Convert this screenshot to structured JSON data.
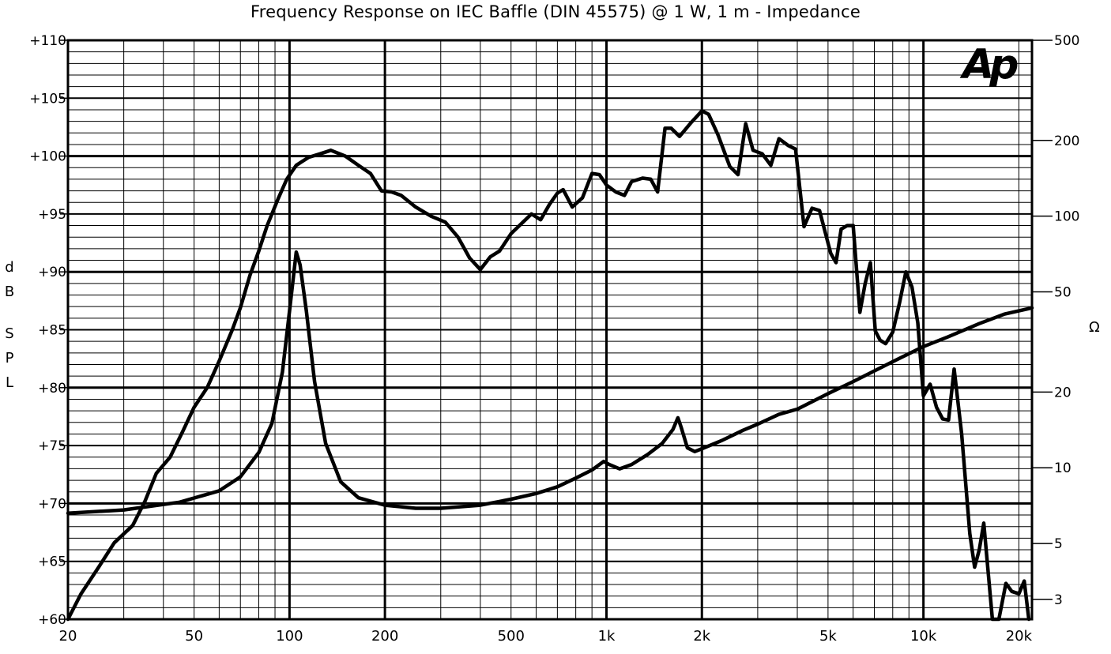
{
  "chart_data": {
    "type": "line",
    "title": "Frequency Response on IEC Baffle (DIN 45575) @ 1 W, 1 m - Impedance",
    "ylabel_left": "dB SPL",
    "ylabel_right": "Ω",
    "logo": "Ap",
    "x_scale": "log",
    "xlim": [
      20,
      22000
    ],
    "ylim_left": [
      60,
      110
    ],
    "ylim_right_log": [
      2.5,
      500
    ],
    "grid": true,
    "x_ticks": [
      {
        "value": 20,
        "label": "20"
      },
      {
        "value": 50,
        "label": "50"
      },
      {
        "value": 100,
        "label": "100"
      },
      {
        "value": 200,
        "label": "200"
      },
      {
        "value": 500,
        "label": "500"
      },
      {
        "value": 1000,
        "label": "1k"
      },
      {
        "value": 2000,
        "label": "2k"
      },
      {
        "value": 5000,
        "label": "5k"
      },
      {
        "value": 10000,
        "label": "10k"
      },
      {
        "value": 20000,
        "label": "20k"
      }
    ],
    "y_ticks_left": [
      {
        "value": 60,
        "label": "+60"
      },
      {
        "value": 65,
        "label": "+65"
      },
      {
        "value": 70,
        "label": "+70"
      },
      {
        "value": 75,
        "label": "+75"
      },
      {
        "value": 80,
        "label": "+80"
      },
      {
        "value": 85,
        "label": "+85"
      },
      {
        "value": 90,
        "label": "+90"
      },
      {
        "value": 95,
        "label": "+95"
      },
      {
        "value": 100,
        "label": "+100"
      },
      {
        "value": 105,
        "label": "+105"
      },
      {
        "value": 110,
        "label": "+110"
      }
    ],
    "y_ticks_right": [
      {
        "value": 3,
        "label": "3"
      },
      {
        "value": 5,
        "label": "5"
      },
      {
        "value": 10,
        "label": "10"
      },
      {
        "value": 20,
        "label": "20"
      },
      {
        "value": 50,
        "label": "50"
      },
      {
        "value": 100,
        "label": "100"
      },
      {
        "value": 200,
        "label": "200"
      },
      {
        "value": 500,
        "label": "500"
      }
    ],
    "series": [
      {
        "name": "",
        "axis": "left",
        "points": [
          [
            20,
            60
          ],
          [
            22,
            62.2
          ],
          [
            25,
            64.5
          ],
          [
            28,
            66.6
          ],
          [
            32,
            68.1
          ],
          [
            35,
            70.2
          ],
          [
            38,
            72.6
          ],
          [
            42,
            74
          ],
          [
            46,
            76.2
          ],
          [
            50,
            78.3
          ],
          [
            55,
            80
          ],
          [
            60,
            82.3
          ],
          [
            66,
            85
          ],
          [
            70,
            86.9
          ],
          [
            75,
            89.7
          ],
          [
            80,
            91.8
          ],
          [
            85,
            94
          ],
          [
            92,
            96.3
          ],
          [
            98,
            98
          ],
          [
            105,
            99.2
          ],
          [
            115,
            99.9
          ],
          [
            125,
            100.2
          ],
          [
            135,
            100.5
          ],
          [
            150,
            100
          ],
          [
            165,
            99.2
          ],
          [
            180,
            98.5
          ],
          [
            195,
            97
          ],
          [
            210,
            96.9
          ],
          [
            225,
            96.6
          ],
          [
            250,
            95.6
          ],
          [
            280,
            94.8
          ],
          [
            310,
            94.3
          ],
          [
            340,
            93
          ],
          [
            370,
            91.2
          ],
          [
            400,
            90.2
          ],
          [
            430,
            91.3
          ],
          [
            460,
            91.8
          ],
          [
            500,
            93.3
          ],
          [
            550,
            94.4
          ],
          [
            580,
            95
          ],
          [
            620,
            94.5
          ],
          [
            660,
            95.8
          ],
          [
            700,
            96.8
          ],
          [
            730,
            97.1
          ],
          [
            780,
            95.6
          ],
          [
            840,
            96.4
          ],
          [
            900,
            98.5
          ],
          [
            950,
            98.4
          ],
          [
            1000,
            97.5
          ],
          [
            1070,
            96.9
          ],
          [
            1140,
            96.6
          ],
          [
            1200,
            97.8
          ],
          [
            1300,
            98.1
          ],
          [
            1380,
            98
          ],
          [
            1450,
            96.9
          ],
          [
            1530,
            102.4
          ],
          [
            1600,
            102.4
          ],
          [
            1700,
            101.7
          ],
          [
            1850,
            102.9
          ],
          [
            2000,
            103.9
          ],
          [
            2100,
            103.6
          ],
          [
            2250,
            101.8
          ],
          [
            2450,
            99.1
          ],
          [
            2600,
            98.4
          ],
          [
            2750,
            102.8
          ],
          [
            2900,
            100.5
          ],
          [
            3100,
            100.2
          ],
          [
            3300,
            99.2
          ],
          [
            3500,
            101.5
          ],
          [
            3750,
            100.9
          ],
          [
            3950,
            100.6
          ],
          [
            4200,
            93.9
          ],
          [
            4450,
            95.5
          ],
          [
            4700,
            95.3
          ],
          [
            4900,
            93.4
          ],
          [
            5100,
            91.6
          ],
          [
            5300,
            90.8
          ],
          [
            5500,
            93.7
          ],
          [
            5750,
            94
          ],
          [
            6000,
            94
          ],
          [
            6300,
            86.5
          ],
          [
            6550,
            89
          ],
          [
            6800,
            90.8
          ],
          [
            7050,
            84.9
          ],
          [
            7300,
            84.1
          ],
          [
            7600,
            83.8
          ],
          [
            8000,
            84.8
          ],
          [
            8400,
            87.3
          ],
          [
            8800,
            90
          ],
          [
            9200,
            88.7
          ],
          [
            9600,
            85.6
          ],
          [
            10000,
            79.3
          ],
          [
            10500,
            80.3
          ],
          [
            11000,
            78.3
          ],
          [
            11500,
            77.3
          ],
          [
            12000,
            77.2
          ],
          [
            12500,
            81.6
          ],
          [
            13200,
            76
          ],
          [
            14000,
            67.4
          ],
          [
            14500,
            64.5
          ],
          [
            15000,
            66
          ],
          [
            15500,
            68.3
          ],
          [
            16500,
            60
          ],
          [
            17300,
            60
          ],
          [
            18200,
            63.1
          ],
          [
            19000,
            62.4
          ],
          [
            20000,
            62.2
          ],
          [
            20800,
            63.3
          ],
          [
            21500,
            60
          ]
        ]
      },
      {
        "name": "",
        "axis": "right",
        "points": [
          [
            20,
            6.6
          ],
          [
            30,
            6.8
          ],
          [
            45,
            7.3
          ],
          [
            60,
            8.1
          ],
          [
            70,
            9.2
          ],
          [
            80,
            11.5
          ],
          [
            88,
            15
          ],
          [
            95,
            24
          ],
          [
            100,
            42
          ],
          [
            105,
            72
          ],
          [
            108,
            64
          ],
          [
            113,
            42
          ],
          [
            120,
            22
          ],
          [
            130,
            12.5
          ],
          [
            145,
            8.8
          ],
          [
            165,
            7.6
          ],
          [
            200,
            7.1
          ],
          [
            250,
            6.9
          ],
          [
            300,
            6.9
          ],
          [
            400,
            7.1
          ],
          [
            500,
            7.5
          ],
          [
            600,
            7.9
          ],
          [
            700,
            8.4
          ],
          [
            800,
            9.1
          ],
          [
            900,
            9.8
          ],
          [
            980,
            10.6
          ],
          [
            1020,
            10.3
          ],
          [
            1100,
            9.9
          ],
          [
            1200,
            10.3
          ],
          [
            1350,
            11.3
          ],
          [
            1500,
            12.5
          ],
          [
            1620,
            14.2
          ],
          [
            1680,
            15.8
          ],
          [
            1720,
            14.5
          ],
          [
            1800,
            12
          ],
          [
            1900,
            11.6
          ],
          [
            2000,
            11.9
          ],
          [
            2300,
            12.8
          ],
          [
            2700,
            14.1
          ],
          [
            3000,
            14.9
          ],
          [
            3500,
            16.3
          ],
          [
            4000,
            17.1
          ],
          [
            5000,
            19.7
          ],
          [
            6000,
            22
          ],
          [
            8000,
            26.4
          ],
          [
            10000,
            30.3
          ],
          [
            12000,
            33.2
          ],
          [
            15000,
            37.4
          ],
          [
            18000,
            40.8
          ],
          [
            22000,
            43.2
          ]
        ]
      }
    ]
  }
}
